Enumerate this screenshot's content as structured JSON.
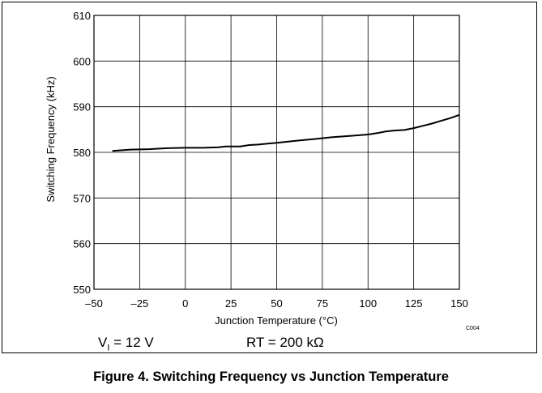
{
  "chart_data": {
    "type": "line",
    "title": "",
    "xlabel": "Junction Temperature (°C)",
    "ylabel": "Switching Frequency (kHz)",
    "xlim": [
      -50,
      150
    ],
    "ylim": [
      550,
      610
    ],
    "x_ticks": [
      -50,
      -25,
      0,
      25,
      50,
      75,
      100,
      125,
      150
    ],
    "x_tick_labels": [
      "–50",
      "–25",
      "0",
      "25",
      "50",
      "75",
      "100",
      "125",
      "150"
    ],
    "y_ticks": [
      550,
      560,
      570,
      580,
      590,
      600,
      610
    ],
    "y_tick_labels": [
      "550",
      "560",
      "570",
      "580",
      "590",
      "600",
      "610"
    ],
    "grid": true,
    "series": [
      {
        "x": [
          -40,
          -30,
          -20,
          -10,
          0,
          10,
          18,
          22,
          30,
          35,
          40,
          45,
          50,
          60,
          70,
          80,
          90,
          100,
          105,
          110,
          115,
          120,
          125,
          130,
          135,
          140,
          145,
          150
        ],
        "y": [
          580.3,
          580.6,
          580.7,
          580.9,
          581.0,
          581.0,
          581.1,
          581.3,
          581.3,
          581.6,
          581.7,
          581.9,
          582.1,
          582.5,
          582.9,
          583.3,
          583.6,
          583.9,
          584.2,
          584.6,
          584.8,
          584.9,
          585.3,
          585.8,
          586.3,
          586.9,
          587.5,
          588.2
        ]
      }
    ]
  },
  "conditions": {
    "vi_prefix": "V",
    "vi_subscript": "I",
    "vi_suffix": " = 12 V",
    "rt": "RT = 200 kΩ"
  },
  "figure_code": "C004",
  "caption": "Figure 4. Switching Frequency vs Junction Temperature"
}
